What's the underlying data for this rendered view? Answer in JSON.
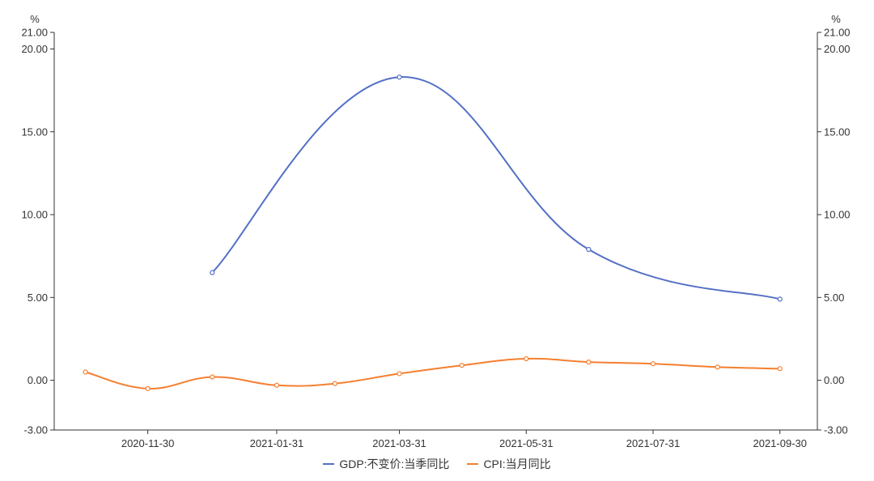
{
  "chart_data": {
    "type": "line",
    "left_unit": "%",
    "right_unit": "%",
    "x_ticks": [
      "2020-11-30",
      "2021-01-31",
      "2021-03-31",
      "2021-05-31",
      "2021-07-31",
      "2021-09-30"
    ],
    "y_ticks": [
      "-3.00",
      "0.00",
      "5.00",
      "10.00",
      "15.00",
      "20.00",
      "21.00"
    ],
    "ylim": [
      -3,
      21
    ],
    "xlim": [
      "2020-10-16",
      "2021-10-18"
    ],
    "grid": false,
    "legend_position": "bottom-center",
    "series": [
      {
        "name": "GDP:不变价:当季同比",
        "color": "#5470c6",
        "points": [
          {
            "x": "2020-12-31",
            "y": 6.5
          },
          {
            "x": "2021-03-31",
            "y": 18.3
          },
          {
            "x": "2021-06-30",
            "y": 7.9
          },
          {
            "x": "2021-09-30",
            "y": 4.9
          }
        ]
      },
      {
        "name": "CPI:当月同比",
        "color": "#f57f30",
        "points": [
          {
            "x": "2020-10-31",
            "y": 0.5
          },
          {
            "x": "2020-11-30",
            "y": -0.5
          },
          {
            "x": "2020-12-31",
            "y": 0.2
          },
          {
            "x": "2021-01-31",
            "y": -0.3
          },
          {
            "x": "2021-02-28",
            "y": -0.2
          },
          {
            "x": "2021-03-31",
            "y": 0.4
          },
          {
            "x": "2021-04-30",
            "y": 0.9
          },
          {
            "x": "2021-05-31",
            "y": 1.3
          },
          {
            "x": "2021-06-30",
            "y": 1.1
          },
          {
            "x": "2021-07-31",
            "y": 1.0
          },
          {
            "x": "2021-08-31",
            "y": 0.8
          },
          {
            "x": "2021-09-30",
            "y": 0.7
          }
        ]
      }
    ]
  }
}
